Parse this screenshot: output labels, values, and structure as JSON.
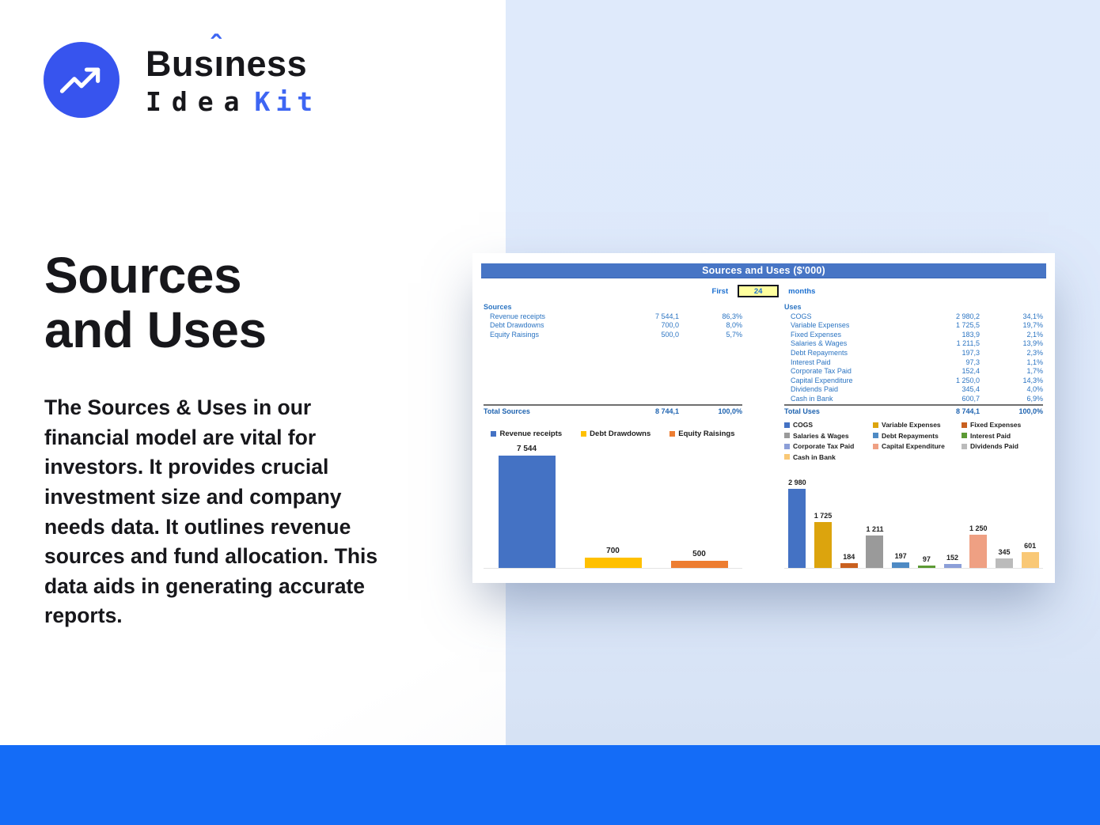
{
  "logo": {
    "title_part1": "Bus",
    "title_accent_letter": "ı",
    "title_accent_mark": "ˆ",
    "title_part2": "ness",
    "subtitle_part1": "Idea",
    "subtitle_part2": "Kit",
    "icon": "trending-up-arrow-icon"
  },
  "hero": {
    "title_line1": "Sources",
    "title_line2": "and Uses",
    "description": "The Sources & Uses in our financial model are vital for investors. It provides crucial investment size and company needs data. It outlines revenue sources and fund allocation. This data aids in generating accurate reports."
  },
  "widget": {
    "title": "Sources and Uses ($'000)",
    "period_label_before": "First",
    "period_value": "24",
    "period_label_after": "months",
    "sources_table": {
      "header": "Sources",
      "rows": [
        [
          "Revenue receipts",
          "7 544,1",
          "86,3%"
        ],
        [
          "Debt Drawdowns",
          "700,0",
          "8,0%"
        ],
        [
          "Equity Raisings",
          "500,0",
          "5,7%"
        ]
      ],
      "total": [
        "Total Sources",
        "8 744,1",
        "100,0%"
      ]
    },
    "uses_table": {
      "header": "Uses",
      "rows": [
        [
          "COGS",
          "2 980,2",
          "34,1%"
        ],
        [
          "Variable Expenses",
          "1 725,5",
          "19,7%"
        ],
        [
          "Fixed Expenses",
          "183,9",
          "2,1%"
        ],
        [
          "Salaries & Wages",
          "1 211,5",
          "13,9%"
        ],
        [
          "Debt Repayments",
          "197,3",
          "2,3%"
        ],
        [
          "Interest Paid",
          "97,3",
          "1,1%"
        ],
        [
          "Corporate Tax Paid",
          "152,4",
          "1,7%"
        ],
        [
          "Capital Expenditure",
          "1 250,0",
          "14,3%"
        ],
        [
          "Dividends Paid",
          "345,4",
          "4,0%"
        ],
        [
          "Cash in Bank",
          "600,7",
          "6,9%"
        ]
      ],
      "total": [
        "Total Uses",
        "8 744,1",
        "100,0%"
      ]
    }
  },
  "chart_data": [
    {
      "type": "bar",
      "title": "Sources",
      "categories": [
        "Revenue receipts",
        "Debt Drawdowns",
        "Equity Raisings"
      ],
      "values": [
        7544.1,
        700.0,
        500.0
      ],
      "bar_labels": [
        "7 544",
        "700",
        "500"
      ],
      "colors": [
        "#4472C4",
        "#FFC000",
        "#ED7D31"
      ],
      "legend_position": "top",
      "ylim": [
        0,
        7544.1
      ],
      "grid": false
    },
    {
      "type": "bar",
      "title": "Uses",
      "categories": [
        "COGS",
        "Variable Expenses",
        "Fixed Expenses",
        "Salaries & Wages",
        "Debt Repayments",
        "Interest Paid",
        "Corporate Tax Paid",
        "Capital Expenditure",
        "Dividends Paid",
        "Cash in Bank"
      ],
      "values": [
        2980.2,
        1725.5,
        183.9,
        1211.5,
        197.3,
        97.3,
        152.4,
        1250.0,
        345.4,
        600.7
      ],
      "bar_labels": [
        "2 980",
        "1 725",
        "184",
        "1 211",
        "197",
        "97",
        "152",
        "1 250",
        "345",
        "601"
      ],
      "colors": [
        "#4472C4",
        "#DCA40D",
        "#C9601F",
        "#9A9A9A",
        "#4E8AC4",
        "#5C9A34",
        "#8C9FD8",
        "#EFA083",
        "#BBBBBB",
        "#F9C876"
      ],
      "legend_position": "top",
      "ylim": [
        0,
        2980.2
      ],
      "grid": false
    }
  ],
  "colors": {
    "brand_blue": "#3754EE",
    "accent_blue": "#3E66F3",
    "panel_blue": "#DEE9FB",
    "bottom_bar_blue": "#146CF7",
    "widget_header_blue": "#4775C5",
    "table_text_blue": "#2B74C2",
    "control_text_blue": "#1B6FD0",
    "input_yellow": "#FFFF9E",
    "text_dark": "#17171B"
  }
}
